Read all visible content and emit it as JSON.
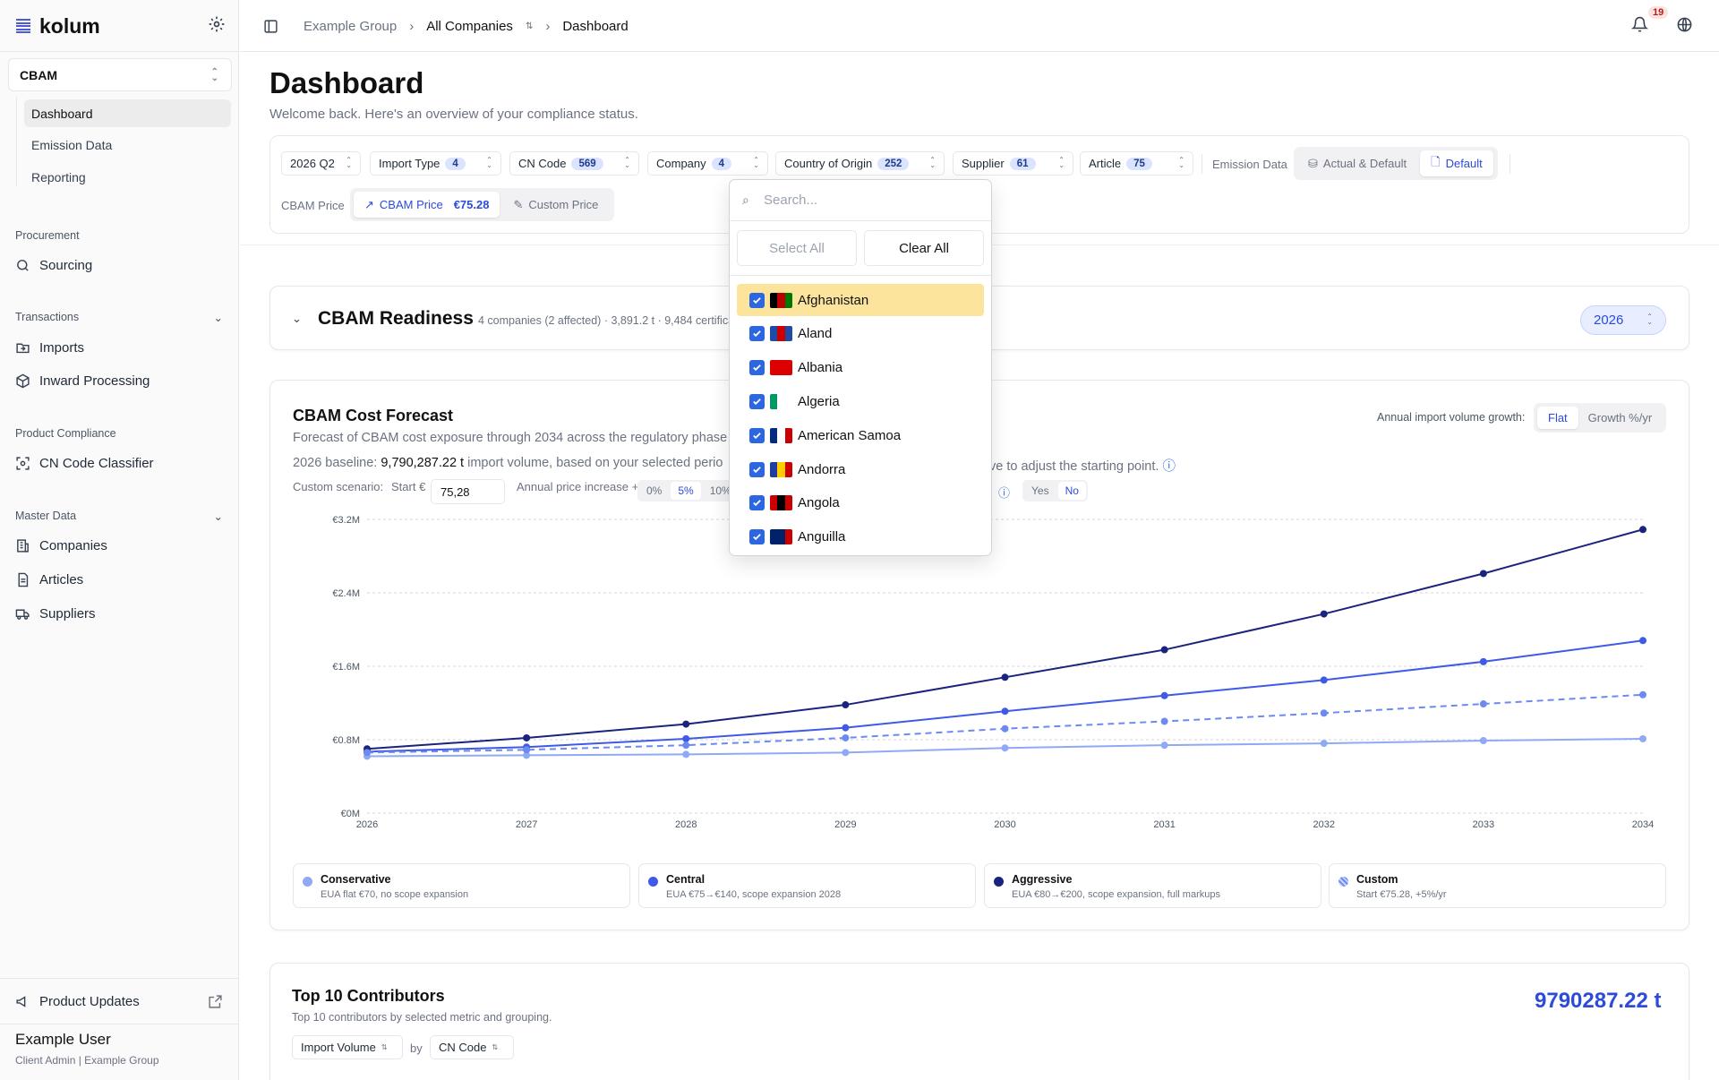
{
  "app": {
    "name": "kolum"
  },
  "sidebar": {
    "module": "CBAM",
    "subnav": [
      {
        "label": "Dashboard"
      },
      {
        "label": "Emission Data"
      },
      {
        "label": "Reporting"
      }
    ],
    "sections": {
      "procurement": "Procurement",
      "transactions": "Transactions",
      "product_compliance": "Product Compliance",
      "master_data": "Master Data"
    },
    "items": {
      "sourcing": "Sourcing",
      "imports": "Imports",
      "inward": "Inward Processing",
      "classifier": "CN Code Classifier",
      "companies": "Companies",
      "articles": "Articles",
      "suppliers": "Suppliers",
      "updates": "Product Updates"
    },
    "user": {
      "name": "Example User",
      "role": "Client Admin | Example Group"
    }
  },
  "topbar": {
    "crumbs": [
      "Example Group",
      "All Companies",
      "Dashboard"
    ],
    "notifications": "19"
  },
  "page": {
    "title": "Dashboard",
    "subtitle": "Welcome back. Here's an overview of your compliance status."
  },
  "filters": {
    "period": "2026 Q2",
    "import_type": {
      "label": "Import Type",
      "count": "4"
    },
    "cn_code": {
      "label": "CN Code",
      "count": "569"
    },
    "company": {
      "label": "Company",
      "count": "4"
    },
    "country": {
      "label": "Country of Origin",
      "count": "252"
    },
    "supplier": {
      "label": "Supplier",
      "count": "61"
    },
    "article": {
      "label": "Article",
      "count": "75"
    },
    "emission_label": "Emission Data",
    "emission_opts": [
      "Actual & Default",
      "Default"
    ],
    "price_label": "CBAM Price",
    "price_opt": "CBAM Price",
    "price_value": "€75.28",
    "custom_price": "Custom Price"
  },
  "readiness": {
    "title": "CBAM Readiness",
    "meta": "4 companies (2 affected) · 3,891.2 t · 9,484 certifica",
    "year": "2026"
  },
  "forecast": {
    "title": "CBAM Cost Forecast",
    "desc": "Forecast of CBAM cost exposure through 2034 across the regulatory phase",
    "baseline_pre": "2026 baseline:",
    "baseline_val": "9,790,287.22 t",
    "baseline_post": "import volume, based on your selected perio",
    "baseline_tail": "ve to adjust the starting point.",
    "growth_label": "Annual import volume growth:",
    "growth_opts": [
      "Flat",
      "Growth %/yr"
    ],
    "custom_label": "Custom scenario:",
    "start_label": "Start €",
    "start_value": "75,28",
    "annual_label": "Annual price increase +",
    "annual_opts": [
      "0%",
      "5%",
      "10%"
    ],
    "yesno": [
      "Yes",
      "No"
    ]
  },
  "chart_data": {
    "type": "line",
    "x": [
      2026,
      2027,
      2028,
      2029,
      2030,
      2031,
      2032,
      2033,
      2034
    ],
    "ylim": [
      0,
      3.2
    ],
    "yticks": [
      "€0M",
      "€0.8M",
      "€1.6M",
      "€2.4M",
      "€3.2M"
    ],
    "series": [
      {
        "name": "Conservative",
        "desc": "EUA flat €70, no scope expansion",
        "color": "#8fa9f5",
        "dashed": false,
        "values": [
          0.62,
          0.63,
          0.64,
          0.66,
          0.71,
          0.74,
          0.76,
          0.79,
          0.81
        ]
      },
      {
        "name": "Central",
        "desc": "EUA €75→€140, scope expansion 2028",
        "color": "#3f5ae6",
        "dashed": false,
        "values": [
          0.67,
          0.72,
          0.81,
          0.93,
          1.11,
          1.28,
          1.45,
          1.65,
          1.88
        ]
      },
      {
        "name": "Aggressive",
        "desc": "EUA €80→€200, scope expansion, full markups",
        "color": "#1a237e",
        "dashed": false,
        "values": [
          0.7,
          0.82,
          0.97,
          1.18,
          1.48,
          1.78,
          2.17,
          2.61,
          3.09
        ]
      },
      {
        "name": "Custom",
        "desc": "Start €75.28, +5%/yr",
        "color": "#6d8af0",
        "dashed": true,
        "values": [
          0.66,
          0.69,
          0.74,
          0.82,
          0.92,
          1.0,
          1.09,
          1.19,
          1.29
        ]
      }
    ]
  },
  "contributors": {
    "title": "Top 10 Contributors",
    "subtitle": "Top 10 contributors by selected metric and grouping.",
    "total": "9790287.22 t",
    "metric": "Import Volume",
    "by": "by",
    "group": "CN Code"
  },
  "dropdown": {
    "placeholder": "Search...",
    "select_all": "Select All",
    "clear_all": "Clear All",
    "options": [
      "Afghanistan",
      "Aland",
      "Albania",
      "Algeria",
      "American Samoa",
      "Andorra",
      "Angola",
      "Anguilla"
    ]
  }
}
